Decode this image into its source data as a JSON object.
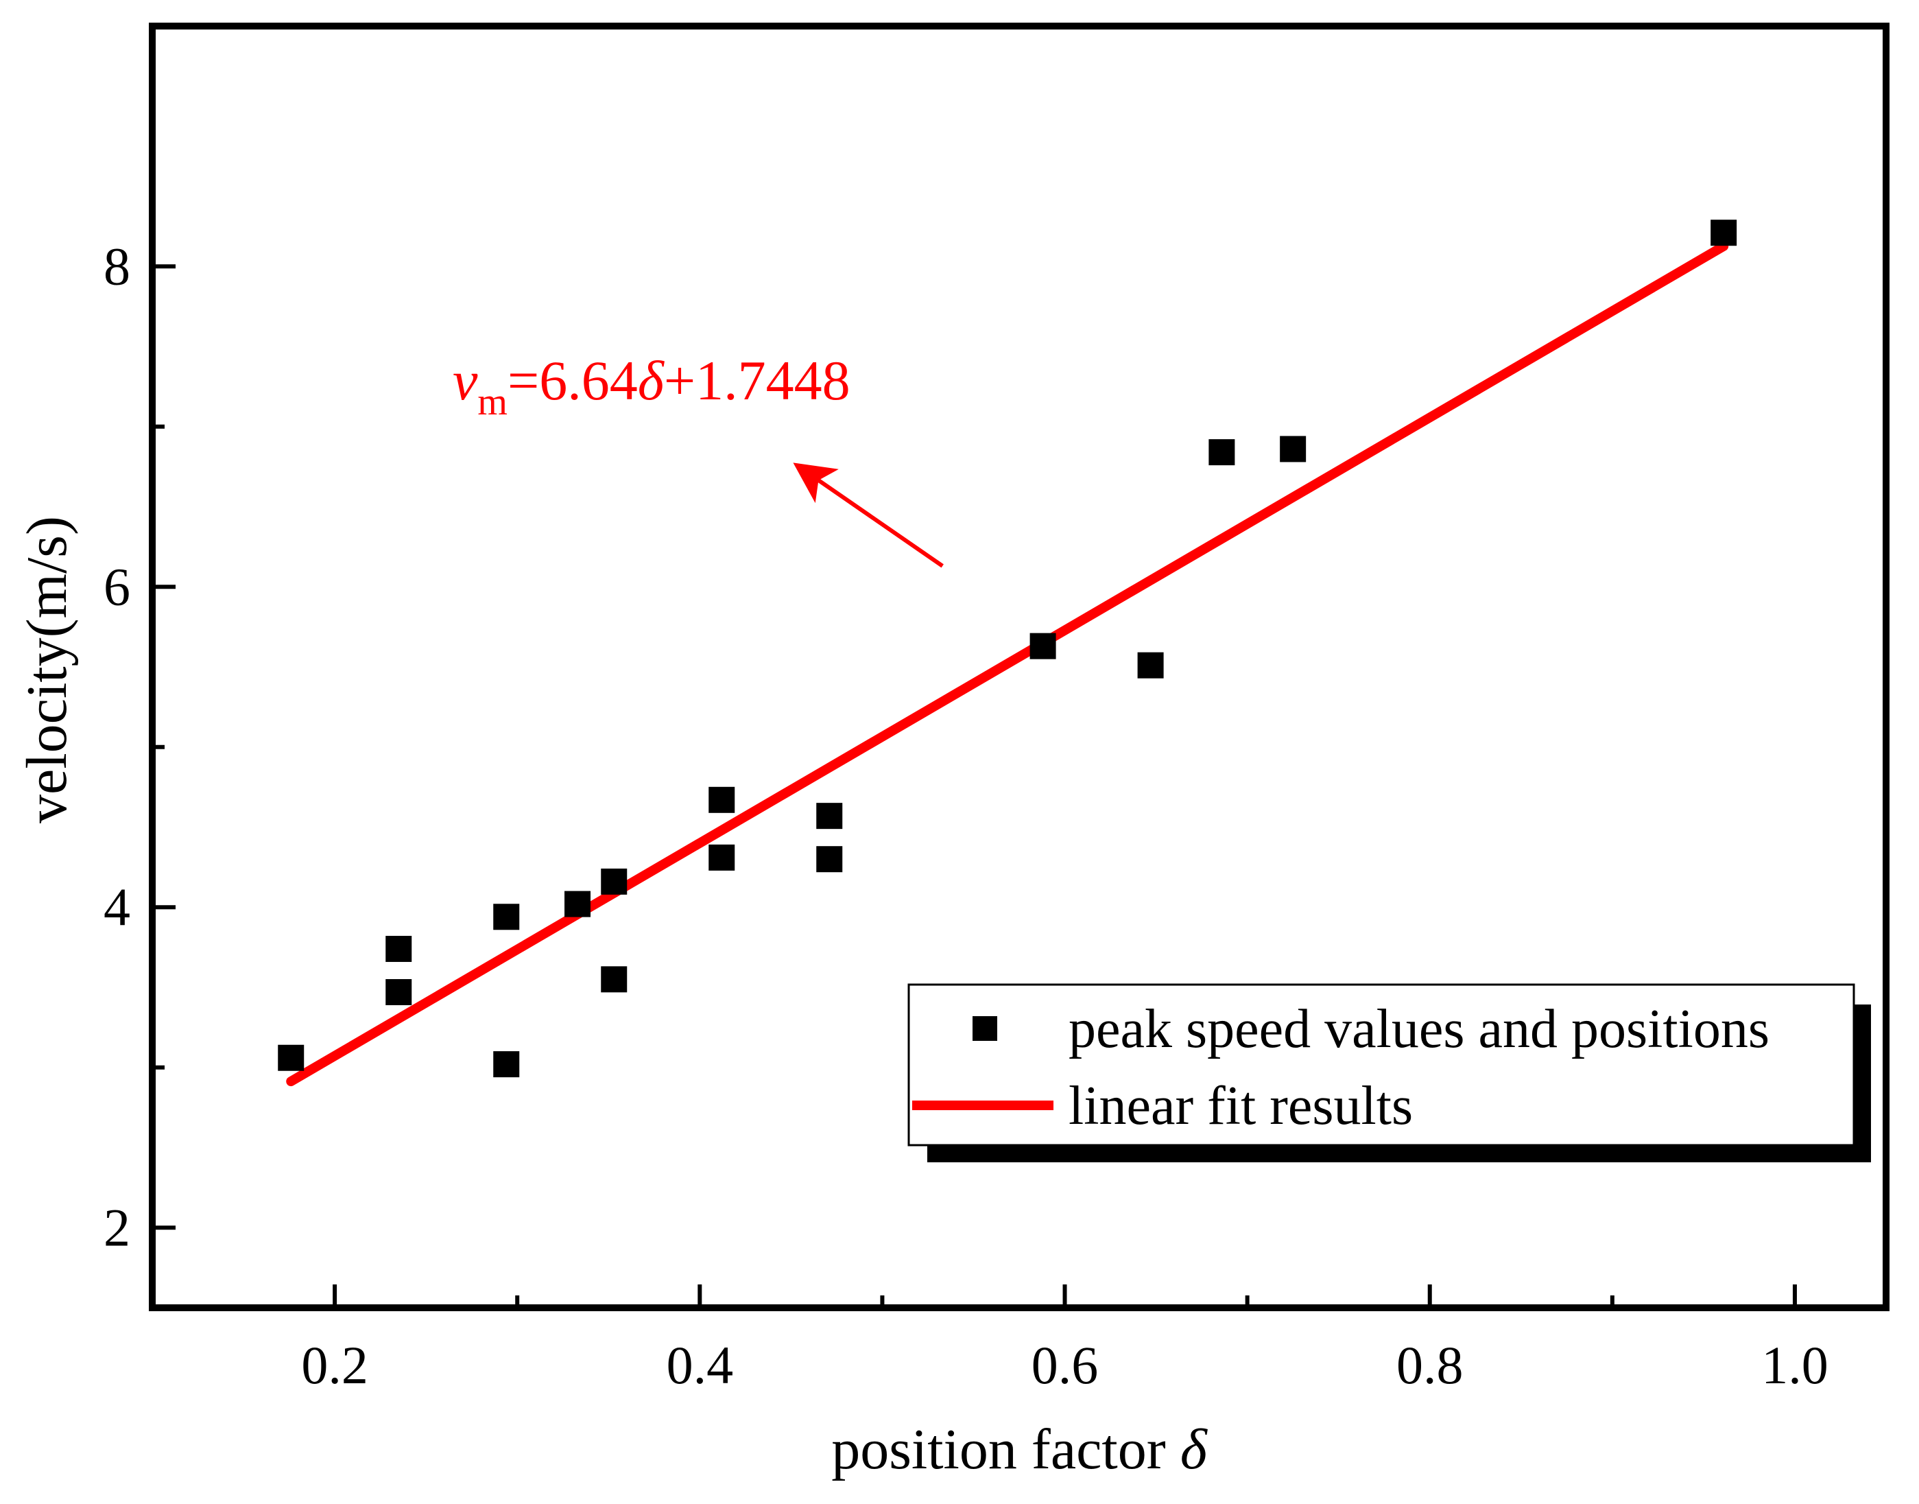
{
  "colors": {
    "fit_line": "#ff0000",
    "points": "#000000",
    "axes": "#000000",
    "background": "#ffffff",
    "annotation": "#ff0000"
  },
  "chart_data": {
    "type": "scatter",
    "title": "",
    "xlabel": "position factor",
    "xlabel_symbol": "δ",
    "ylabel": "velocity(m/s)",
    "xlim": [
      0.1,
      1.05
    ],
    "ylim": [
      1.5,
      9.5
    ],
    "x_ticks": [
      0.2,
      0.4,
      0.6,
      0.8,
      1.0
    ],
    "x_tick_labels": [
      "0.2",
      "0.4",
      "0.6",
      "0.8",
      "1.0"
    ],
    "x_minor_ticks": [
      0.3,
      0.5,
      0.7,
      0.9
    ],
    "y_ticks": [
      2,
      4,
      6,
      8
    ],
    "y_tick_labels": [
      "2",
      "4",
      "6",
      "8"
    ],
    "y_minor_ticks": [
      3,
      5,
      7
    ],
    "grid": false,
    "legend_position": "bottom-right",
    "series": [
      {
        "name": "peak speed values and positions",
        "kind": "scatter",
        "marker": "square",
        "x": [
          0.176,
          0.235,
          0.235,
          0.294,
          0.294,
          0.333,
          0.353,
          0.353,
          0.412,
          0.412,
          0.471,
          0.471,
          0.588,
          0.647,
          0.686,
          0.725,
          0.961
        ],
        "y": [
          3.06,
          3.74,
          3.47,
          3.94,
          3.02,
          4.02,
          4.16,
          3.55,
          4.67,
          4.31,
          4.57,
          4.3,
          5.63,
          5.51,
          6.84,
          6.86,
          8.21
        ]
      },
      {
        "name": "linear fit results",
        "kind": "line",
        "slope": 6.64,
        "intercept": 1.7448,
        "x": [
          0.176,
          0.961
        ],
        "y": [
          2.913,
          8.126
        ]
      }
    ],
    "annotations": [
      {
        "kind": "equation",
        "var": "v",
        "subscript": "m",
        "equals": "=6.64",
        "symbol": "δ",
        "rest": "+1.7448",
        "arrow_from": [
          0.533,
          6.13
        ],
        "arrow_to": [
          0.453,
          6.76
        ]
      }
    ]
  }
}
